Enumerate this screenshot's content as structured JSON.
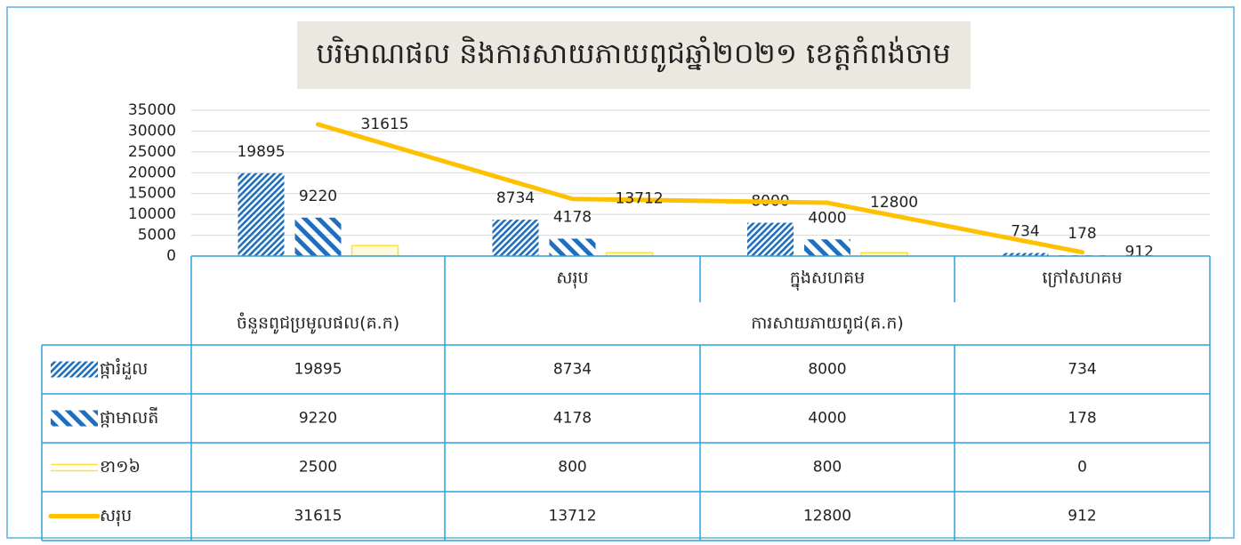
{
  "chart_data": {
    "type": "bar",
    "title": "បរិមាណផល និងការសាយភាយពូជឆ្នាំ២០២១ ខេត្តកំពង់ចាម",
    "categories": [
      "ចំនួនពូជប្រមូលផល(គ.ក)",
      "សរុប",
      "ក្នុងសហគម",
      "ក្រៅសហគម"
    ],
    "group_label": "ការសាយភាយពូជ(គ.ក)",
    "series": [
      {
        "name": "ផ្ការំដួល",
        "color": "#1f6fbf",
        "pattern": "dense-hatch",
        "data_labels": true,
        "values": [
          19895,
          8734,
          8000,
          734
        ]
      },
      {
        "name": "ផ្កាមាលតី",
        "color": "#1f6fbf",
        "pattern": "wide-hatch",
        "data_labels": true,
        "values": [
          9220,
          4178,
          4000,
          178
        ]
      },
      {
        "name": "ខា១៦",
        "color": "#ffe033",
        "pattern": "outline",
        "data_labels": false,
        "values": [
          2500,
          800,
          800,
          0
        ]
      },
      {
        "name": "សរុប",
        "color": "#ffc000",
        "type": "line",
        "data_labels": true,
        "values": [
          31615,
          13712,
          12800,
          912
        ]
      }
    ],
    "ylim": [
      0,
      35000
    ],
    "yticks": [
      0,
      5000,
      10000,
      15000,
      20000,
      25000,
      30000,
      35000
    ],
    "grid": true,
    "data_table": true
  }
}
